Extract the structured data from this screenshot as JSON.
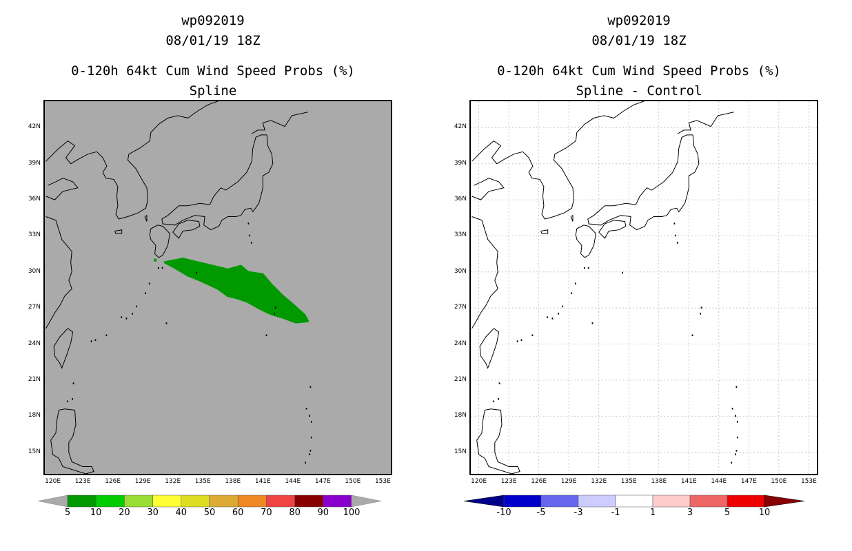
{
  "left": {
    "title_lines": [
      "wp092019",
      "08/01/19 18Z",
      "0-120h 64kt Cum Wind Speed Probs (%)",
      "Spline"
    ],
    "background": "#aaaaaa",
    "colorbar": {
      "labels": [
        "5",
        "10",
        "20",
        "30",
        "40",
        "50",
        "60",
        "70",
        "80",
        "90",
        "100"
      ],
      "colors": [
        "#009900",
        "#00cc00",
        "#99dd33",
        "#ffff33",
        "#dddd22",
        "#ddaa33",
        "#ee8822",
        "#ee4444",
        "#880000",
        "#8800cc"
      ],
      "end_color": "#aaaaaa"
    },
    "swath_color": "#009900"
  },
  "right": {
    "title_lines": [
      "wp092019",
      "08/01/19 18Z",
      "0-120h 64kt Cum Wind Speed Probs (%)",
      "Spline - Control"
    ],
    "background": "#ffffff",
    "colorbar": {
      "labels": [
        "-10",
        "-5",
        "-3",
        "-1",
        "1",
        "3",
        "5",
        "10"
      ],
      "colors": [
        "#0000cc",
        "#6666ee",
        "#ccccff",
        "#ffffff",
        "#ffcccc",
        "#ee6666",
        "#ee0000"
      ],
      "left_end": "#000088",
      "right_end": "#880000"
    }
  },
  "axes": {
    "lat_labels": [
      "42N",
      "39N",
      "36N",
      "33N",
      "30N",
      "27N",
      "24N",
      "21N",
      "18N",
      "15N"
    ],
    "lon_labels": [
      "120E",
      "123E",
      "126E",
      "129E",
      "132E",
      "135E",
      "138E",
      "141E",
      "144E",
      "147E",
      "150E",
      "153E"
    ],
    "lat_values": [
      42,
      39,
      36,
      33,
      30,
      27,
      24,
      21,
      18,
      15
    ],
    "lon_values": [
      120,
      123,
      126,
      129,
      132,
      135,
      138,
      141,
      144,
      147,
      150,
      153
    ],
    "lat_range": [
      13.2,
      44.2
    ],
    "lon_range": [
      119.2,
      153.8
    ]
  }
}
